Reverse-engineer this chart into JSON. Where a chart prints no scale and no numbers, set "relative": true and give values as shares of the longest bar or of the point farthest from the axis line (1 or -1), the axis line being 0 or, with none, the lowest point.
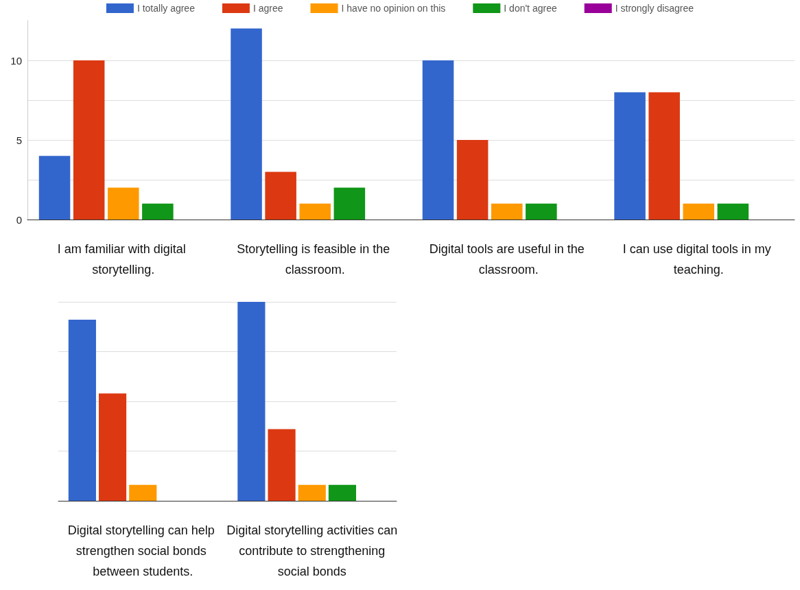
{
  "chart_data": [
    {
      "type": "bar",
      "categories": [
        "I am familiar with digital storytelling.",
        "Storytelling is feasible in the classroom.",
        "Digital tools are useful in the classroom.",
        "I can use digital tools in my teaching."
      ],
      "series": [
        {
          "name": "I totally agree",
          "color": "#3366cc",
          "values": [
            4,
            12,
            10,
            8
          ]
        },
        {
          "name": "I agree",
          "color": "#dc3912",
          "values": [
            10,
            3,
            5,
            8
          ]
        },
        {
          "name": "I have no opinion on this",
          "color": "#ff9900",
          "values": [
            2,
            1,
            1,
            1
          ]
        },
        {
          "name": "I don't agree",
          "color": "#109618",
          "values": [
            1,
            2,
            1,
            1
          ]
        },
        {
          "name": "I strongly disagree",
          "color": "#990099",
          "values": [
            0,
            0,
            0,
            0
          ]
        }
      ],
      "ylim": [
        0,
        12.5
      ],
      "yticks": [
        0,
        5,
        10
      ],
      "grid": "y",
      "legend": "top"
    },
    {
      "type": "bar",
      "categories": [
        "Digital storytelling can help strengthen social bonds between students.",
        "Digital storytelling activities can contribute to strengthening social bonds"
      ],
      "relative": true,
      "series": [
        {
          "color": "#3366cc",
          "values": [
            0.91,
            1
          ]
        },
        {
          "color": "#dc3912",
          "values": [
            0.54,
            0.36
          ]
        },
        {
          "color": "#ff9900",
          "values": [
            0.08,
            0.08
          ]
        },
        {
          "color": "#109618",
          "values": [
            0,
            0.08
          ]
        },
        {
          "color": "#990099",
          "values": [
            0,
            0
          ]
        }
      ],
      "grid": "y"
    }
  ]
}
